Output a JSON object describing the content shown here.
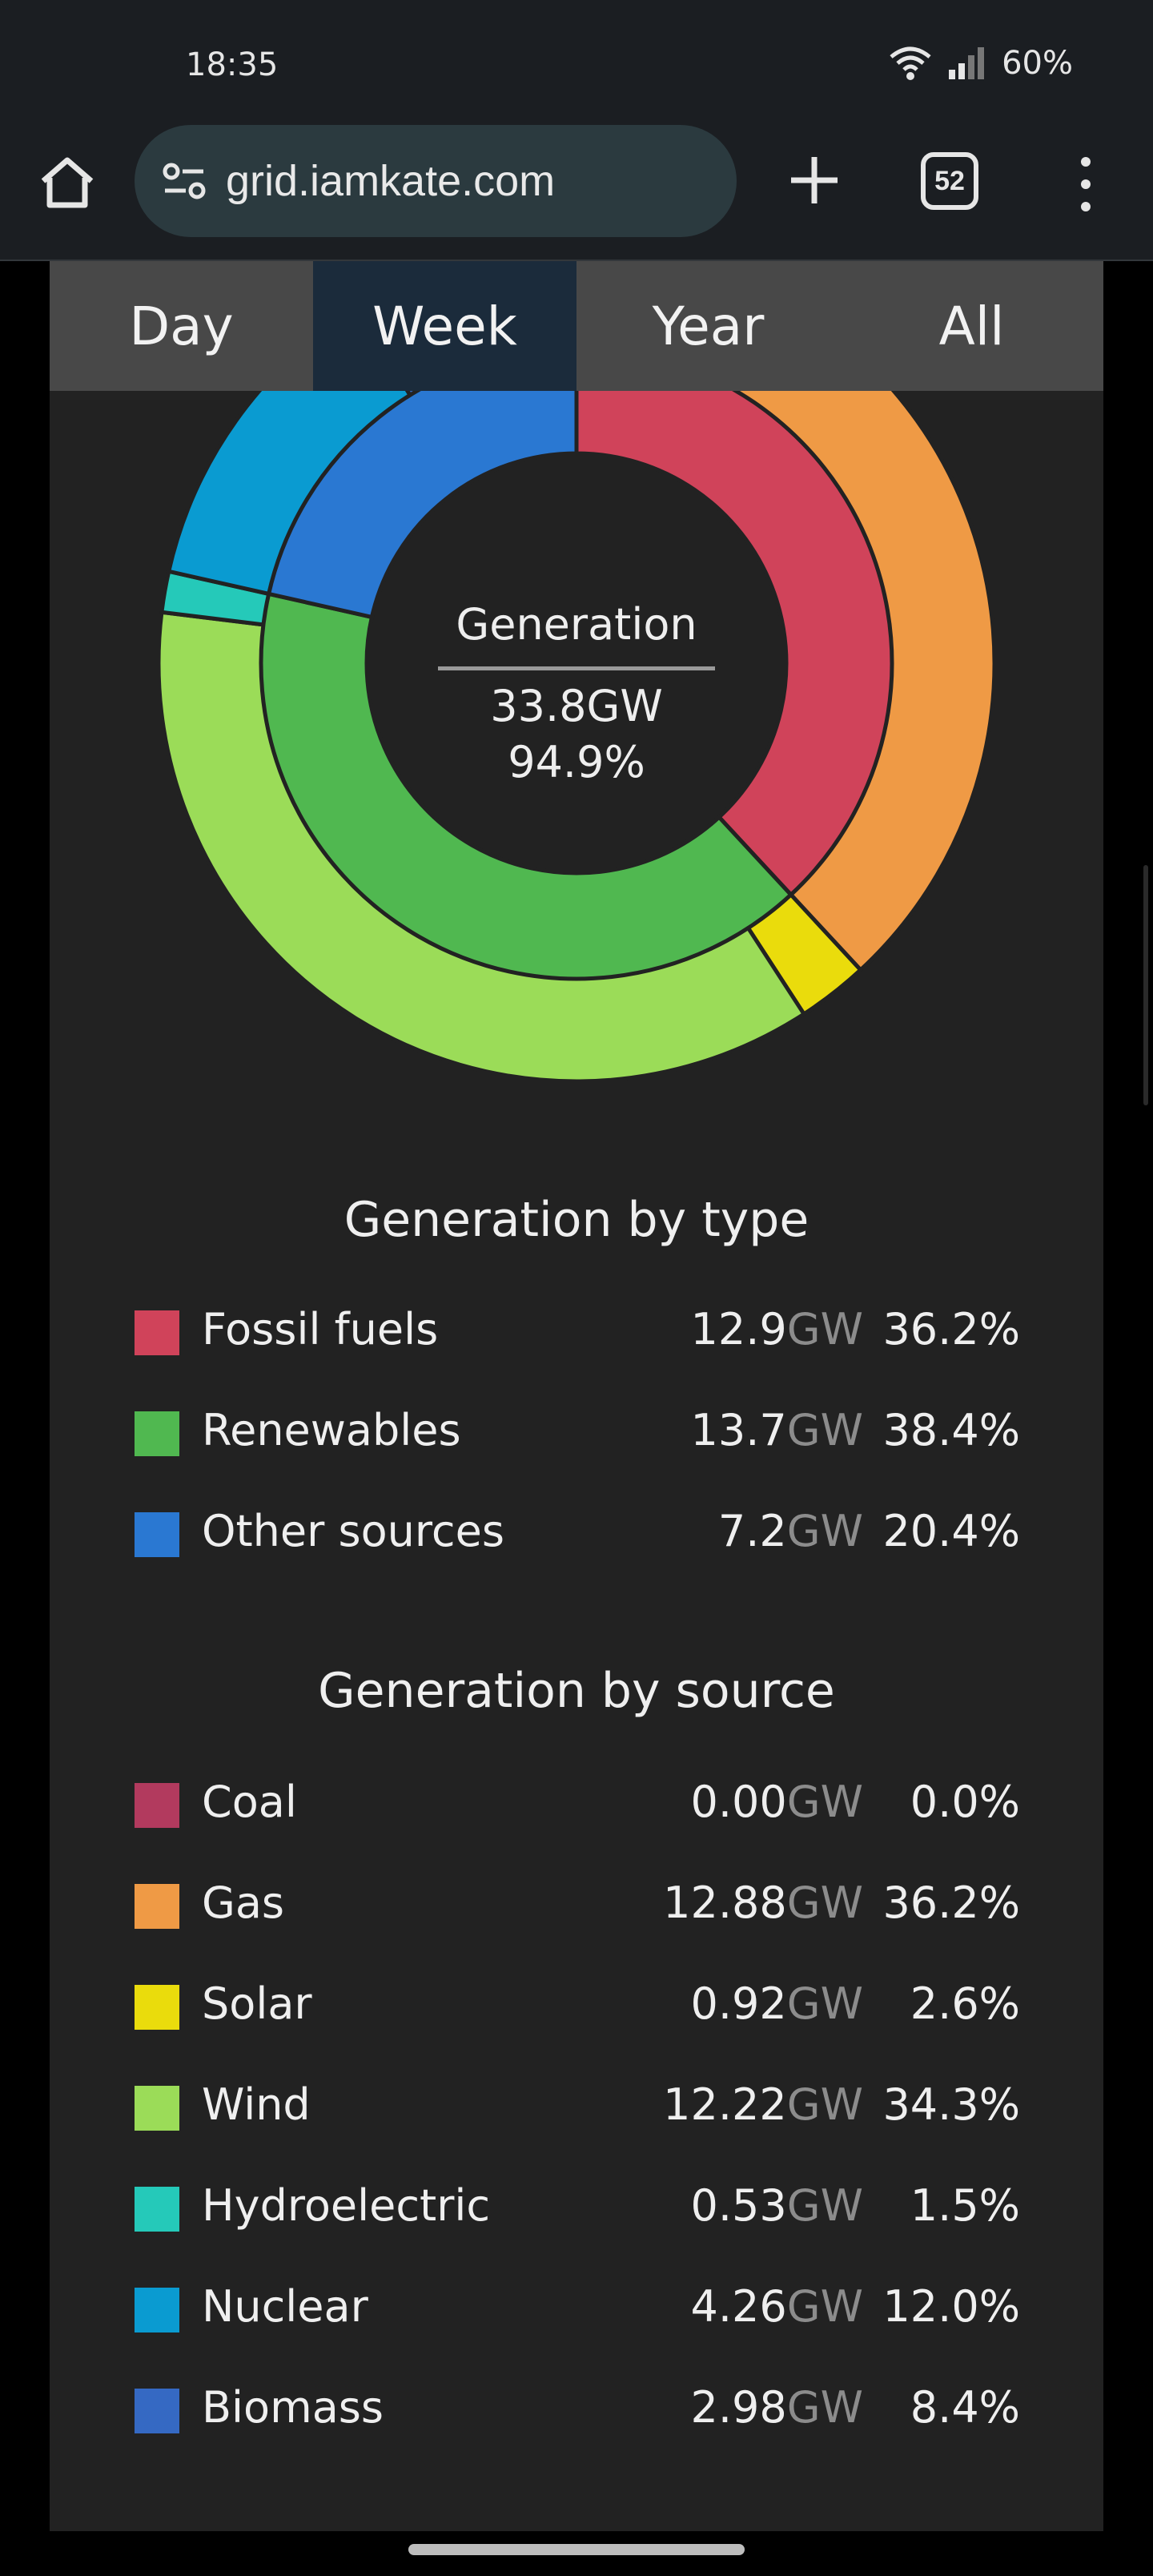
{
  "status": {
    "time": "18:35",
    "battery": "60%"
  },
  "browser": {
    "url": "grid.iamkate.com",
    "tab_count": "52"
  },
  "range_tabs": [
    {
      "label": "Day",
      "active": false
    },
    {
      "label": "Week",
      "active": true
    },
    {
      "label": "Year",
      "active": false
    },
    {
      "label": "All",
      "active": false
    }
  ],
  "chart_data": {
    "type": "pie",
    "center": {
      "title": "Generation",
      "value": "33.8GW",
      "percent": "94.9%"
    },
    "inner_ring": {
      "categories": [
        "Fossil fuels",
        "Renewables",
        "Other sources"
      ],
      "values": [
        36.2,
        38.4,
        20.4
      ],
      "colors": [
        "#d0435a",
        "#50b850",
        "#2a78d2"
      ]
    },
    "outer_ring": {
      "categories": [
        "Coal",
        "Gas",
        "Solar",
        "Wind",
        "Hydroelectric",
        "Nuclear",
        "Biomass"
      ],
      "values": [
        0.0,
        36.2,
        2.6,
        34.3,
        1.5,
        12.0,
        8.4
      ],
      "colors": [
        "#b23a5e",
        "#ef9a45",
        "#eadc0c",
        "#9bdc58",
        "#25c9b9",
        "#0a9bd1",
        "#3569c3"
      ]
    }
  },
  "type_section": {
    "title": "Generation by type",
    "unit": "GW",
    "items": [
      {
        "label": "Fossil fuels",
        "value": "12.9",
        "pct": "36.2%",
        "color": "#d0435a"
      },
      {
        "label": "Renewables",
        "value": "13.7",
        "pct": "38.4%",
        "color": "#50b850"
      },
      {
        "label": "Other sources",
        "value": "7.2",
        "pct": "20.4%",
        "color": "#2a78d2"
      }
    ]
  },
  "source_section": {
    "title": "Generation by source",
    "unit": "GW",
    "items": [
      {
        "label": "Coal",
        "value": "0.00",
        "pct": "0.0%",
        "color": "#b23a5e"
      },
      {
        "label": "Gas",
        "value": "12.88",
        "pct": "36.2%",
        "color": "#ef9a45"
      },
      {
        "label": "Solar",
        "value": "0.92",
        "pct": "2.6%",
        "color": "#eadc0c"
      },
      {
        "label": "Wind",
        "value": "12.22",
        "pct": "34.3%",
        "color": "#9bdc58"
      },
      {
        "label": "Hydroelectric",
        "value": "0.53",
        "pct": "1.5%",
        "color": "#25c9b9"
      },
      {
        "label": "Nuclear",
        "value": "4.26",
        "pct": "12.0%",
        "color": "#0a9bd1"
      },
      {
        "label": "Biomass",
        "value": "2.98",
        "pct": "8.4%",
        "color": "#3569c3"
      }
    ]
  }
}
